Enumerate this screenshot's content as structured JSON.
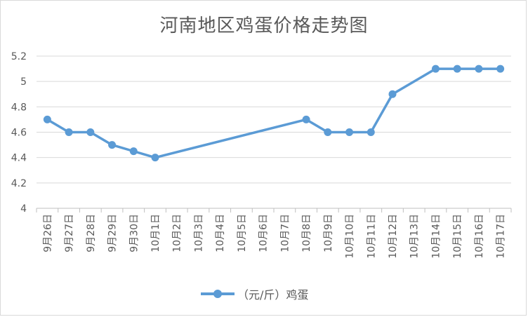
{
  "chart_data": {
    "type": "line",
    "title": "河南地区鸡蛋价格走势图",
    "categories": [
      "9月26日",
      "9月27日",
      "9月28日",
      "9月29日",
      "9月30日",
      "10月1日",
      "10月2日",
      "10月3日",
      "10月4日",
      "10月5日",
      "10月6日",
      "10月7日",
      "10月8日",
      "10月9日",
      "10月10日",
      "10月11日",
      "10月12日",
      "10月13日",
      "10月14日",
      "10月15日",
      "10月16日",
      "10月17日"
    ],
    "series": [
      {
        "name": "（元/斤）鸡蛋",
        "values": [
          4.7,
          4.6,
          4.6,
          4.5,
          4.45,
          4.4,
          null,
          null,
          null,
          null,
          null,
          null,
          4.7,
          4.6,
          4.6,
          4.6,
          4.9,
          null,
          5.1,
          5.1,
          5.1,
          5.1
        ]
      }
    ],
    "yticks": [
      "4",
      "4.2",
      "4.4",
      "4.6",
      "4.8",
      "5",
      "5.2"
    ],
    "ylim": [
      4,
      5.2
    ],
    "grid": true,
    "legend": "bottom",
    "color": "#5b9bd5"
  }
}
